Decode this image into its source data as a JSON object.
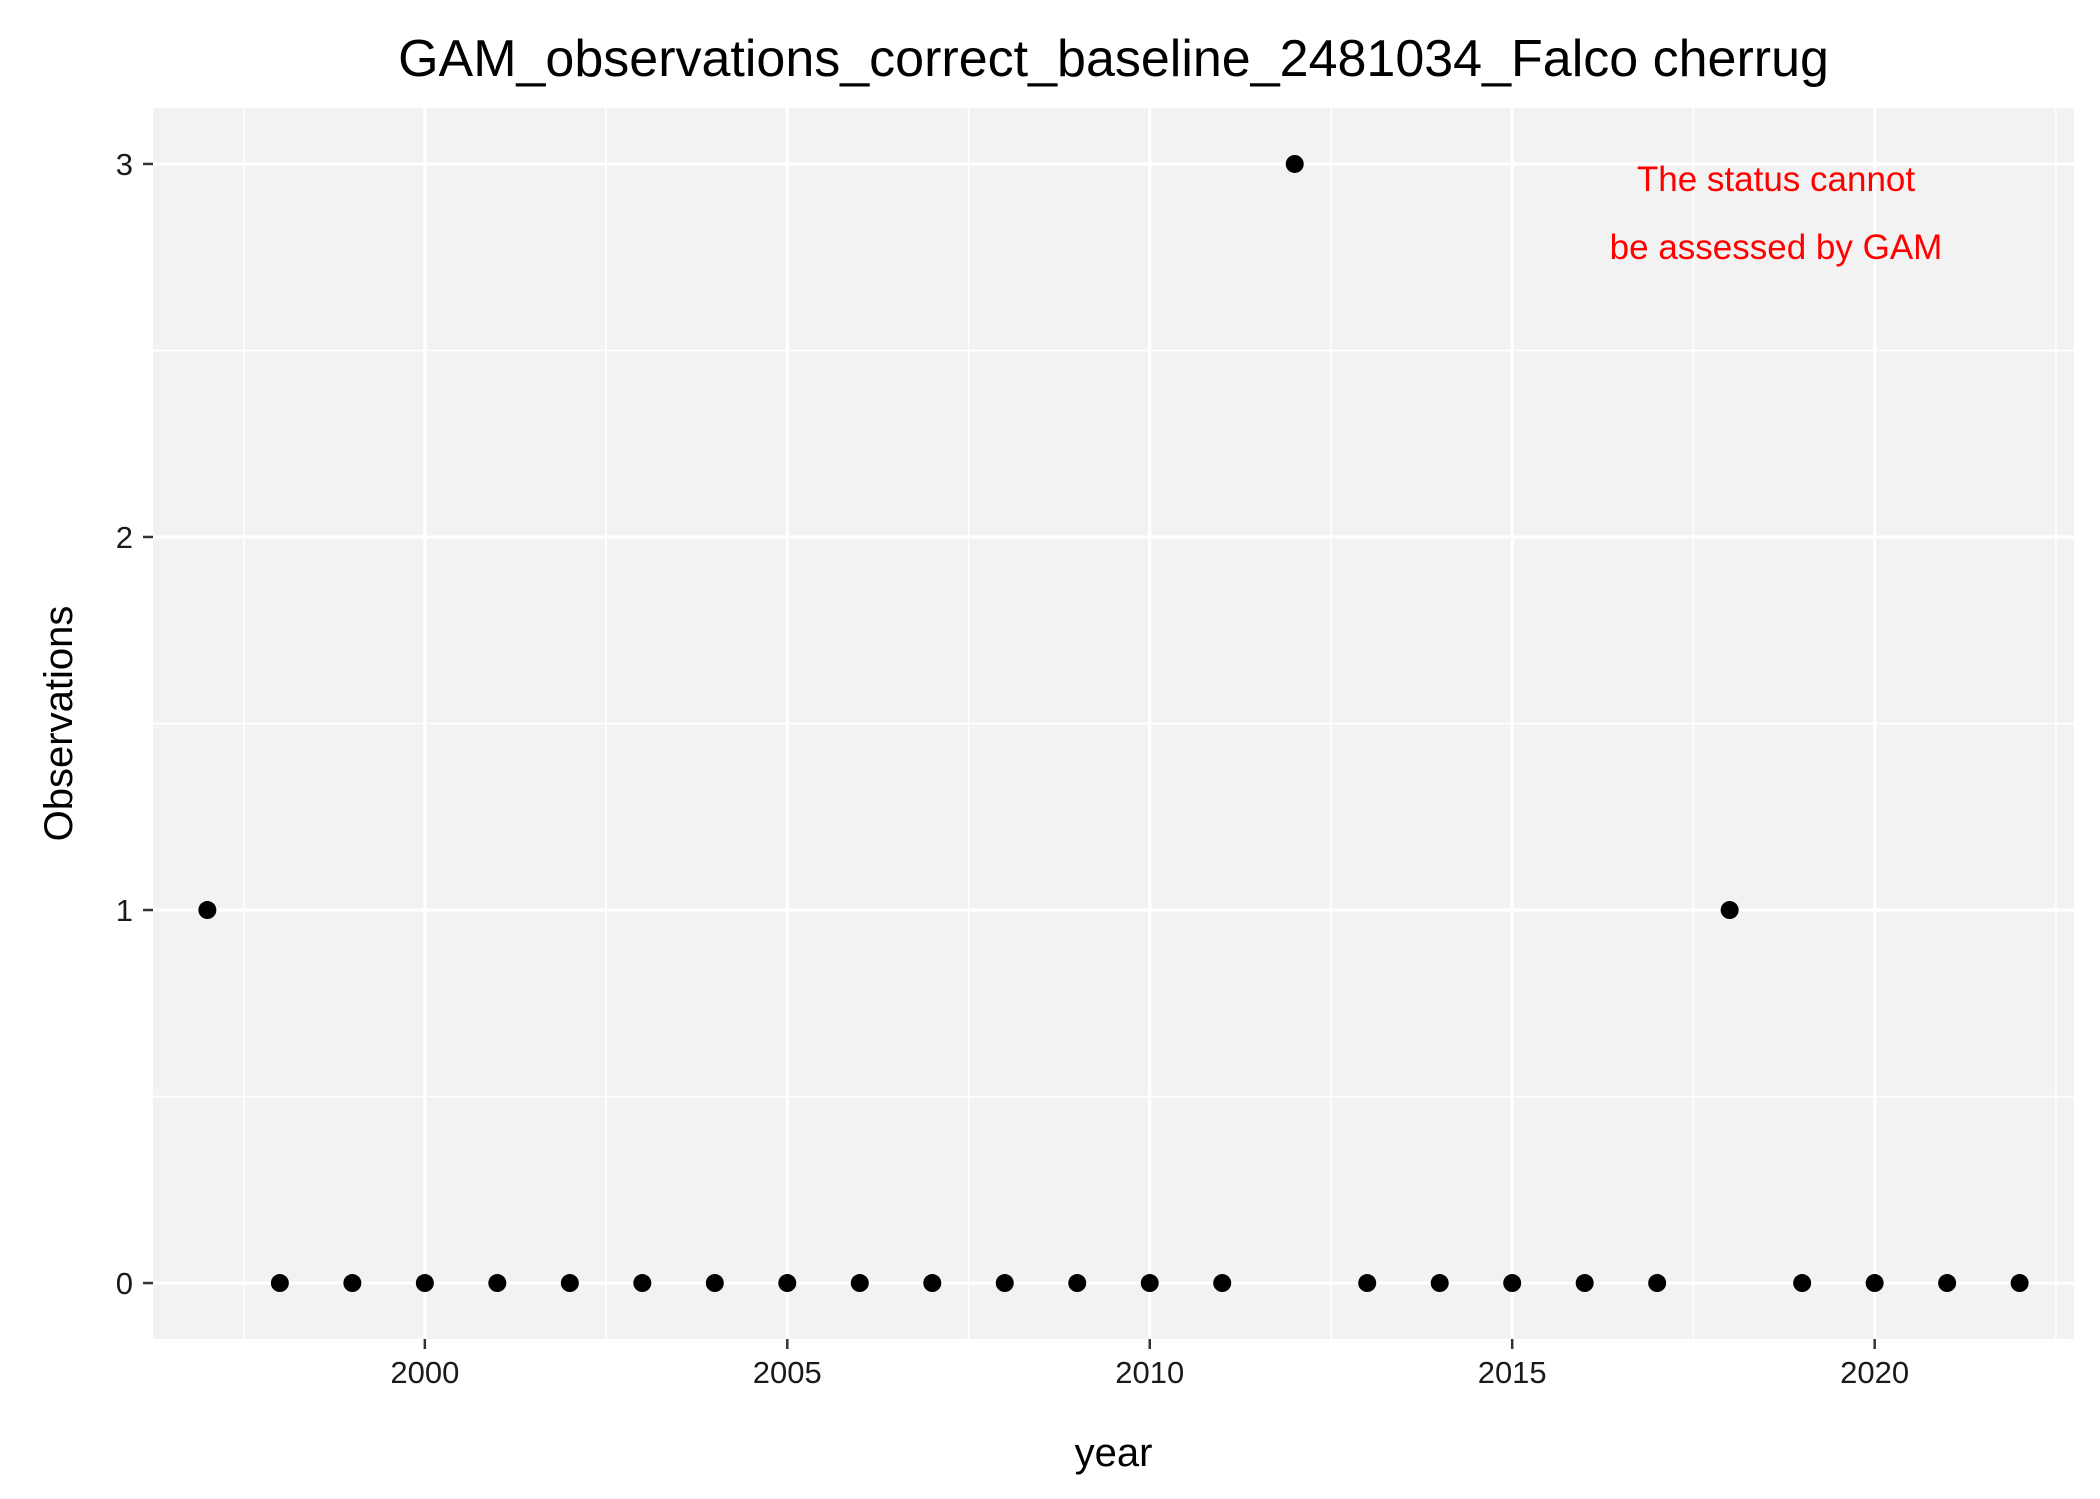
{
  "chart_data": {
    "type": "scatter",
    "title": "GAM_observations_correct_baseline_2481034_Falco cherrug",
    "xlabel": "year",
    "ylabel": "Observations",
    "xlim": [
      1996.25,
      2022.75
    ],
    "ylim": [
      -0.15,
      3.15
    ],
    "x_ticks": [
      2000,
      2005,
      2010,
      2015,
      2020
    ],
    "x_tick_labels": [
      "2000",
      "2005",
      "2010",
      "2015",
      "2020"
    ],
    "x_minor_breaks": [
      1997.5,
      2002.5,
      2007.5,
      2012.5,
      2017.5,
      2022.5
    ],
    "y_ticks": [
      0,
      1,
      2,
      3
    ],
    "y_tick_labels": [
      "0",
      "1",
      "2",
      "3"
    ],
    "y_minor_breaks": [
      0.5,
      1.5,
      2.5
    ],
    "grid": true,
    "legend": "none",
    "point_color": "#000000",
    "panel_background": "#f2f2f2",
    "grid_color": "#ffffff",
    "points": [
      {
        "x": 1997,
        "y": 1
      },
      {
        "x": 1998,
        "y": 0
      },
      {
        "x": 1999,
        "y": 0
      },
      {
        "x": 2000,
        "y": 0
      },
      {
        "x": 2001,
        "y": 0
      },
      {
        "x": 2002,
        "y": 0
      },
      {
        "x": 2003,
        "y": 0
      },
      {
        "x": 2004,
        "y": 0
      },
      {
        "x": 2005,
        "y": 0
      },
      {
        "x": 2006,
        "y": 0
      },
      {
        "x": 2007,
        "y": 0
      },
      {
        "x": 2008,
        "y": 0
      },
      {
        "x": 2009,
        "y": 0
      },
      {
        "x": 2010,
        "y": 0
      },
      {
        "x": 2011,
        "y": 0
      },
      {
        "x": 2012,
        "y": 3
      },
      {
        "x": 2013,
        "y": 0
      },
      {
        "x": 2014,
        "y": 0
      },
      {
        "x": 2015,
        "y": 0
      },
      {
        "x": 2016,
        "y": 0
      },
      {
        "x": 2017,
        "y": 0
      },
      {
        "x": 2018,
        "y": 1
      },
      {
        "x": 2019,
        "y": 0
      },
      {
        "x": 2020,
        "y": 0
      },
      {
        "x": 2021,
        "y": 0
      },
      {
        "x": 2022,
        "y": 0
      }
    ],
    "annotation": {
      "lines": [
        "The status cannot",
        "be assessed by GAM"
      ],
      "color": "#ff0000",
      "placement": "top-right"
    }
  }
}
